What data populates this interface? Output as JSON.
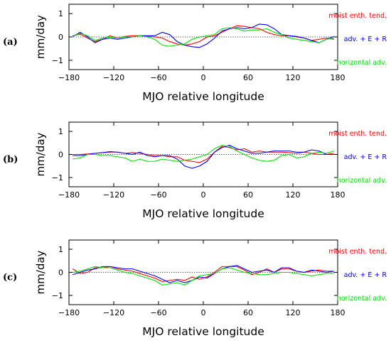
{
  "colors": {
    "moist": "#ff0000",
    "adv": "#0000ff",
    "horiz": "#00e000",
    "zero_line": "#000000"
  },
  "chart_data": [
    {
      "type": "line",
      "panel_label": "(a)",
      "xlabel": "MJO relative longitude",
      "ylabel": "mm/day",
      "xlim": [
        -180,
        180
      ],
      "ylim": [
        -1.4,
        1.4
      ],
      "xticks": [
        -180,
        -120,
        -60,
        0,
        60,
        120,
        180
      ],
      "xtick_labels": [
        "−180",
        "−120",
        "−60",
        "0",
        "60",
        "120",
        "180"
      ],
      "yticks": [
        -1,
        0,
        1
      ],
      "ytick_labels": [
        "−1",
        "0",
        "1"
      ],
      "zero_line": true,
      "legend_position": "right",
      "x": [
        -175,
        -165,
        -155,
        -145,
        -135,
        -125,
        -115,
        -105,
        -95,
        -85,
        -75,
        -65,
        -55,
        -45,
        -35,
        -25,
        -15,
        -5,
        5,
        15,
        25,
        35,
        45,
        55,
        65,
        75,
        85,
        95,
        105,
        115,
        125,
        135,
        145,
        155,
        165,
        175
      ],
      "series": [
        {
          "name": "moist enth. tend.",
          "color_key": "moist",
          "values": [
            0.05,
            0.12,
            -0.05,
            -0.2,
            -0.1,
            0.05,
            -0.05,
            0.02,
            0.05,
            0.05,
            0.03,
            0,
            -0.05,
            -0.2,
            -0.3,
            -0.35,
            -0.3,
            -0.2,
            0,
            0.05,
            0.2,
            0.35,
            0.48,
            0.45,
            0.4,
            0.35,
            0.2,
            0.1,
            0.05,
            0.05,
            0,
            -0.05,
            -0.15,
            -0.1,
            -0.05,
            -0.1
          ]
        },
        {
          "name": "adv. + E + R",
          "color_key": "adv",
          "values": [
            0.02,
            0.2,
            0,
            -0.25,
            -0.1,
            -0.05,
            -0.1,
            -0.05,
            0,
            0.05,
            0.05,
            0.05,
            0.2,
            0.1,
            -0.2,
            -0.35,
            -0.42,
            -0.45,
            -0.3,
            -0.05,
            0.25,
            0.35,
            0.4,
            0.35,
            0.4,
            0.55,
            0.52,
            0.35,
            0.1,
            0.05,
            0.02,
            -0.05,
            -0.15,
            -0.25,
            -0.1,
            0.02
          ]
        },
        {
          "name": "horizontal adv.",
          "color_key": "horiz",
          "values": [
            0.05,
            0.15,
            0.05,
            -0.15,
            -0.05,
            0,
            -0.05,
            0,
            0,
            0.05,
            0,
            -0.1,
            -0.35,
            -0.4,
            -0.35,
            -0.3,
            -0.1,
            0,
            0.05,
            0.1,
            0.35,
            0.4,
            0.35,
            0.25,
            0.3,
            0.3,
            0.35,
            0.2,
            0.1,
            -0.05,
            -0.1,
            -0.15,
            -0.2,
            -0.25,
            -0.1,
            -0.05
          ]
        }
      ]
    },
    {
      "type": "line",
      "panel_label": "(b)",
      "xlabel": "MJO relative longitude",
      "ylabel": "mm/day",
      "xlim": [
        -180,
        180
      ],
      "ylim": [
        -1.4,
        1.4
      ],
      "xticks": [
        -180,
        -120,
        -60,
        0,
        60,
        120,
        180
      ],
      "xtick_labels": [
        "−180",
        "−120",
        "−60",
        "0",
        "60",
        "120",
        "180"
      ],
      "yticks": [
        -1,
        0,
        1
      ],
      "ytick_labels": [
        "−1",
        "0",
        "1"
      ],
      "zero_line": true,
      "legend_position": "right",
      "x": [
        -175,
        -165,
        -155,
        -145,
        -135,
        -125,
        -115,
        -105,
        -95,
        -85,
        -75,
        -65,
        -55,
        -45,
        -35,
        -25,
        -15,
        -5,
        5,
        15,
        25,
        35,
        45,
        55,
        65,
        75,
        85,
        95,
        105,
        115,
        125,
        135,
        145,
        155,
        165,
        175
      ],
      "series": [
        {
          "name": "moist enth. tend.",
          "color_key": "moist",
          "values": [
            0,
            0,
            0.02,
            0.05,
            0.08,
            0.1,
            0.1,
            0.05,
            0.08,
            0.05,
            0,
            -0.05,
            -0.05,
            -0.1,
            -0.1,
            -0.25,
            -0.3,
            -0.35,
            -0.2,
            0.1,
            0.35,
            0.3,
            0.2,
            0.25,
            0.1,
            0.15,
            0.1,
            0.1,
            0.1,
            0.08,
            0.05,
            0.1,
            0.05,
            0,
            0,
            0.05
          ]
        },
        {
          "name": "adv. + E + R",
          "color_key": "adv",
          "values": [
            -0.05,
            -0.05,
            0,
            0.05,
            0.08,
            0.12,
            0.1,
            0.05,
            0,
            0.1,
            -0.05,
            -0.1,
            -0.05,
            -0.05,
            -0.2,
            -0.5,
            -0.6,
            -0.5,
            -0.3,
            0.1,
            0.3,
            0.4,
            0.25,
            0.15,
            0.05,
            0.05,
            0.1,
            0.15,
            0.15,
            0.15,
            0.1,
            0.1,
            0.2,
            0.15,
            0,
            0
          ]
        },
        {
          "name": "horizontal adv.",
          "color_key": "horiz",
          "values": [
            -0.2,
            -0.15,
            0,
            0,
            -0.05,
            -0.05,
            -0.1,
            -0.15,
            -0.3,
            -0.2,
            -0.3,
            -0.3,
            -0.2,
            -0.25,
            -0.3,
            -0.25,
            -0.2,
            -0.1,
            0,
            0.25,
            0.4,
            0.35,
            0.15,
            0,
            -0.15,
            -0.25,
            -0.3,
            -0.25,
            -0.05,
            0,
            -0.15,
            -0.1,
            0.05,
            0.1,
            0.05,
            0.15
          ]
        }
      ]
    },
    {
      "type": "line",
      "panel_label": "(c)",
      "xlabel": "MJO relative longitude",
      "ylabel": "mm/day",
      "xlim": [
        -180,
        180
      ],
      "ylim": [
        -1.4,
        1.4
      ],
      "xticks": [
        -180,
        -120,
        -60,
        0,
        60,
        120,
        180
      ],
      "xtick_labels": [
        "−180",
        "−120",
        "−60",
        "0",
        "60",
        "120",
        "180"
      ],
      "yticks": [
        -1,
        0,
        1
      ],
      "ytick_labels": [
        "−1",
        "0",
        "1"
      ],
      "zero_line": true,
      "legend_position": "right",
      "x": [
        -175,
        -165,
        -155,
        -145,
        -135,
        -125,
        -115,
        -105,
        -95,
        -85,
        -75,
        -65,
        -55,
        -45,
        -35,
        -25,
        -15,
        -5,
        5,
        15,
        25,
        35,
        45,
        55,
        65,
        75,
        85,
        95,
        105,
        115,
        125,
        135,
        145,
        155,
        165,
        175
      ],
      "series": [
        {
          "name": "moist enth. tend.",
          "color_key": "moist",
          "values": [
            0.15,
            -0.05,
            0,
            0.2,
            0.2,
            0.25,
            0.15,
            0.1,
            0.05,
            -0.05,
            -0.15,
            -0.25,
            -0.4,
            -0.35,
            -0.3,
            -0.35,
            -0.2,
            -0.3,
            -0.2,
            0,
            0.25,
            0.25,
            0.25,
            0.1,
            -0.1,
            0,
            0.15,
            0,
            0.15,
            0.15,
            0.05,
            0,
            0.05,
            0.1,
            0.05,
            0.05
          ]
        },
        {
          "name": "adv. + E + R",
          "color_key": "adv",
          "values": [
            -0.1,
            0,
            0.1,
            0.15,
            0.25,
            0.25,
            0.2,
            0.15,
            0.15,
            0.05,
            -0.05,
            -0.15,
            -0.3,
            -0.45,
            -0.35,
            -0.45,
            -0.35,
            -0.2,
            -0.25,
            -0.05,
            0.15,
            0.25,
            0.3,
            0.15,
            0,
            0.05,
            0.1,
            0,
            0.2,
            0.2,
            0.05,
            0,
            0.1,
            0.05,
            0,
            0.05
          ]
        },
        {
          "name": "horizontal adv.",
          "color_key": "horiz",
          "values": [
            0,
            0.05,
            0.15,
            0.25,
            0.2,
            0.2,
            0.1,
            0,
            -0.05,
            -0.15,
            -0.25,
            -0.35,
            -0.55,
            -0.5,
            -0.45,
            -0.55,
            -0.35,
            -0.15,
            -0.1,
            -0.05,
            0.15,
            0.2,
            0.1,
            0,
            -0.05,
            -0.1,
            -0.1,
            -0.05,
            0,
            0,
            -0.05,
            -0.1,
            -0.15,
            -0.1,
            -0.05,
            -0.05
          ]
        }
      ]
    }
  ]
}
